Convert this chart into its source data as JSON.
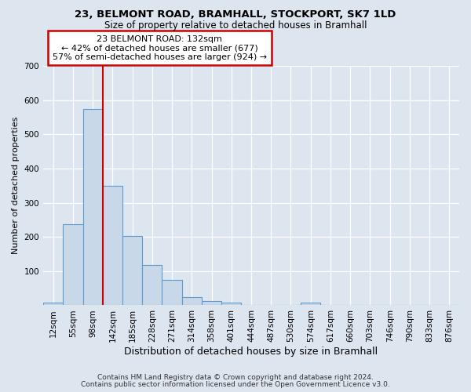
{
  "title_line1": "23, BELMONT ROAD, BRAMHALL, STOCKPORT, SK7 1LD",
  "title_line2": "Size of property relative to detached houses in Bramhall",
  "xlabel": "Distribution of detached houses by size in Bramhall",
  "ylabel": "Number of detached properties",
  "footnote1": "Contains HM Land Registry data © Crown copyright and database right 2024.",
  "footnote2": "Contains public sector information licensed under the Open Government Licence v3.0.",
  "bar_labels": [
    "12sqm",
    "55sqm",
    "98sqm",
    "142sqm",
    "185sqm",
    "228sqm",
    "271sqm",
    "314sqm",
    "358sqm",
    "401sqm",
    "444sqm",
    "487sqm",
    "530sqm",
    "574sqm",
    "617sqm",
    "660sqm",
    "703sqm",
    "746sqm",
    "790sqm",
    "833sqm",
    "876sqm"
  ],
  "bar_heights": [
    8,
    238,
    575,
    350,
    203,
    118,
    75,
    25,
    13,
    8,
    0,
    0,
    0,
    7,
    0,
    0,
    0,
    0,
    0,
    0,
    0
  ],
  "bar_color": "#c8d8e8",
  "bar_edge_color": "#5b9bd5",
  "vline_pos": 2.5,
  "vline_color": "#cc0000",
  "annotation_line1": "23 BELMONT ROAD: 132sqm",
  "annotation_line2": "← 42% of detached houses are smaller (677)",
  "annotation_line3": "57% of semi-detached houses are larger (924) →",
  "annotation_box_facecolor": "white",
  "annotation_box_edgecolor": "#cc0000",
  "ylim": [
    0,
    700
  ],
  "yticks": [
    100,
    200,
    300,
    400,
    500,
    600,
    700
  ],
  "background_color": "#dde5ef",
  "grid_color": "white",
  "title1_fontsize": 9.5,
  "title2_fontsize": 8.5,
  "ylabel_fontsize": 8,
  "xlabel_fontsize": 9,
  "tick_fontsize": 7.5,
  "annotation_fontsize": 8,
  "footnote_fontsize": 6.5
}
